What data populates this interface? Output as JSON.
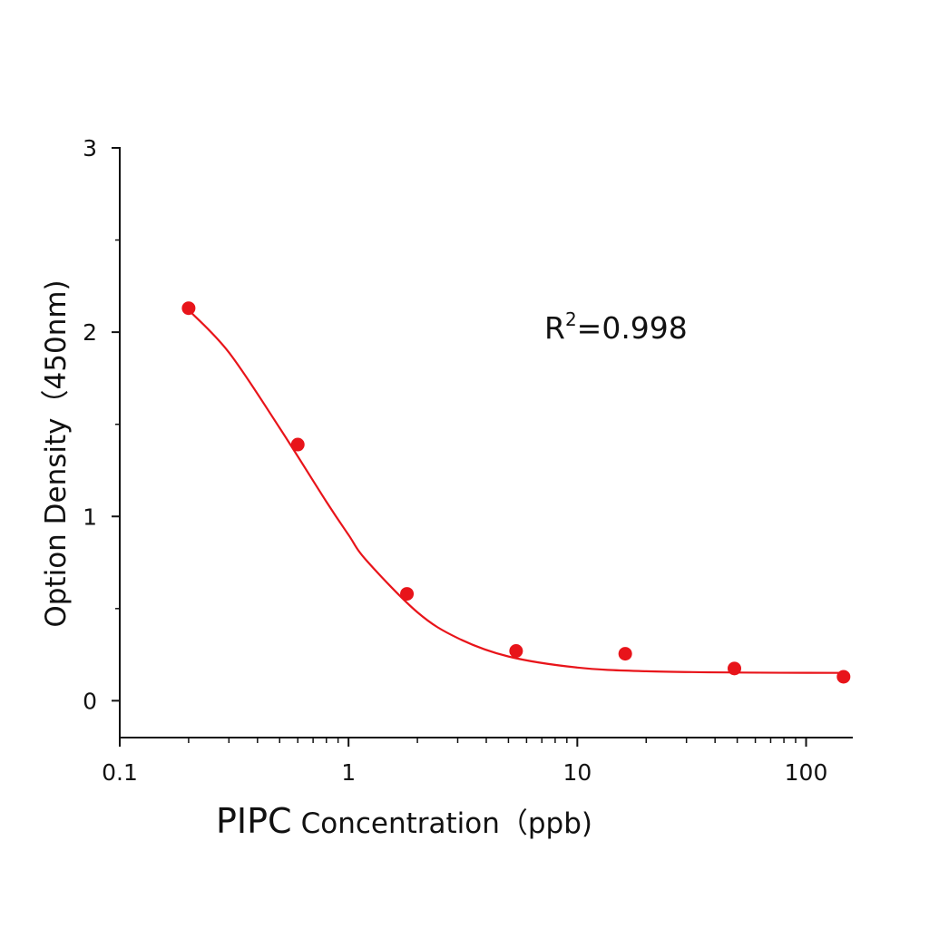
{
  "chart_data": {
    "type": "scatter",
    "xlabel_prefix": "PIPC",
    "xlabel": "Concentration（ppb)",
    "ylabel": "Option Density（450nm)",
    "x_scale": "log",
    "xlim": [
      0.1,
      160
    ],
    "ylim": [
      -0.2,
      3
    ],
    "x_ticks": [
      0.1,
      1,
      10,
      100
    ],
    "x_tick_labels": [
      "0.1",
      "1",
      "10",
      "100"
    ],
    "y_ticks": [
      0,
      1,
      2,
      3
    ],
    "y_tick_labels": [
      "0",
      "1",
      "2",
      "3"
    ],
    "grid": false,
    "annotation": {
      "base": "R",
      "sup": "2",
      "rest": "=0.998"
    },
    "color": "#e8141a",
    "series": [
      {
        "kind": "points",
        "x": [
          0.2,
          0.6,
          1.8,
          5.4,
          16.2,
          48.6,
          145.8
        ],
        "y": [
          2.13,
          1.39,
          0.58,
          0.27,
          0.255,
          0.175,
          0.13
        ]
      },
      {
        "kind": "fit-line",
        "x": [
          0.2,
          0.3,
          0.5,
          0.8,
          1,
          1.2,
          2,
          3,
          5,
          10,
          20,
          50,
          145.8
        ],
        "y": [
          2.12,
          1.89,
          1.48,
          1.08,
          0.9,
          0.76,
          0.48,
          0.34,
          0.24,
          0.18,
          0.16,
          0.153,
          0.151
        ]
      }
    ]
  }
}
